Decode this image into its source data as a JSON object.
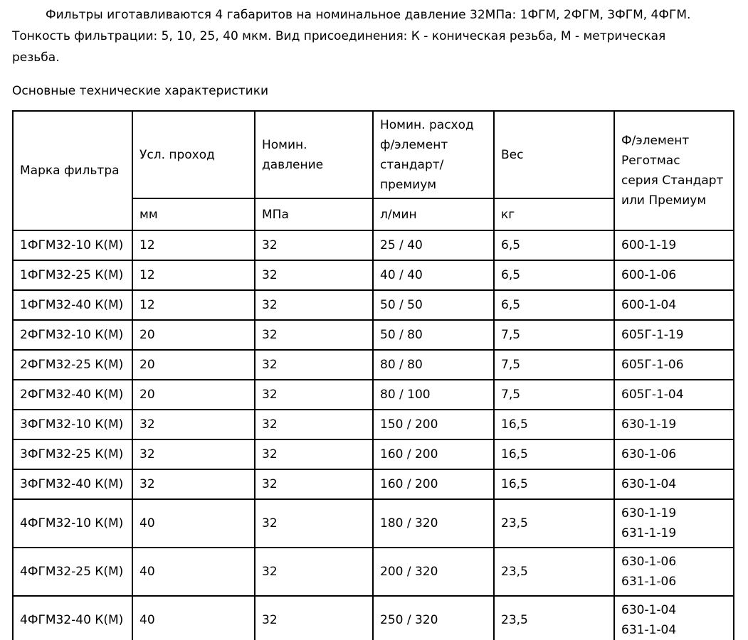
{
  "page": {
    "intro_paragraph": "Фильтры иготавливаются 4 габаритов на номинальное давление 32МПа: 1ФГМ, 2ФГМ, 3ФГМ, 4ФГМ.\nТонкость фильтрации: 5, 10, 25, 40 мкм. Вид присоединения: К - коническая резьба, М - метрическая\nрезьба.",
    "section_title": "Основные технические характеристики"
  },
  "table": {
    "header": {
      "marka": "Марка фильтра",
      "usl_prohod": "Усл. проход",
      "nomin_davlenie": "Номин.\nдавление",
      "nomin_rashod": "Номин. расход\nф/элемент\nстандарт/\nпремиум",
      "ves": "Вес",
      "felement": "Ф/элемент\nРеготмас\nсерия Стандарт\nили Премиум",
      "units": {
        "usl_prohod": "мм",
        "nomin_davlenie": "МПа",
        "nomin_rashod": "л/мин",
        "ves": "кг"
      }
    },
    "rows": [
      [
        "1ФГМ32-10 К(М)",
        "12",
        "32",
        "25 / 40",
        "6,5",
        "600-1-19"
      ],
      [
        "1ФГМ32-25 К(М)",
        "12",
        "32",
        "40 / 40",
        "6,5",
        "600-1-06"
      ],
      [
        "1ФГМ32-40 К(М)",
        "12",
        "32",
        "50 / 50",
        "6,5",
        "600-1-04"
      ],
      [
        "2ФГМ32-10 К(М)",
        "20",
        "32",
        "50 / 80",
        "7,5",
        "605Г-1-19"
      ],
      [
        "2ФГМ32-25 К(М)",
        "20",
        "32",
        "80 / 80",
        "7,5",
        "605Г-1-06"
      ],
      [
        "2ФГМ32-40 К(М)",
        "20",
        "32",
        "80 / 100",
        "7,5",
        "605Г-1-04"
      ],
      [
        "3ФГМ32-10 К(М)",
        "32",
        "32",
        "150 / 200",
        "16,5",
        "630-1-19"
      ],
      [
        "3ФГМ32-25 К(М)",
        "32",
        "32",
        "160 / 200",
        "16,5",
        "630-1-06"
      ],
      [
        "3ФГМ32-40 К(М)",
        "32",
        "32",
        "160 / 200",
        "16,5",
        "630-1-04"
      ],
      [
        "4ФГМ32-10 К(М)",
        "40",
        "32",
        "180 / 320",
        "23,5",
        "630-1-19\n631-1-19"
      ],
      [
        "4ФГМ32-25 К(М)",
        "40",
        "32",
        "200 / 320",
        "23,5",
        "630-1-06\n631-1-06"
      ],
      [
        "4ФГМ32-40 К(М)",
        "40",
        "32",
        "250 / 320",
        "23,5",
        "630-1-04\n631-1-04"
      ]
    ],
    "colors": {
      "text": "#000000",
      "border": "#000000",
      "background": "#ffffff"
    }
  }
}
